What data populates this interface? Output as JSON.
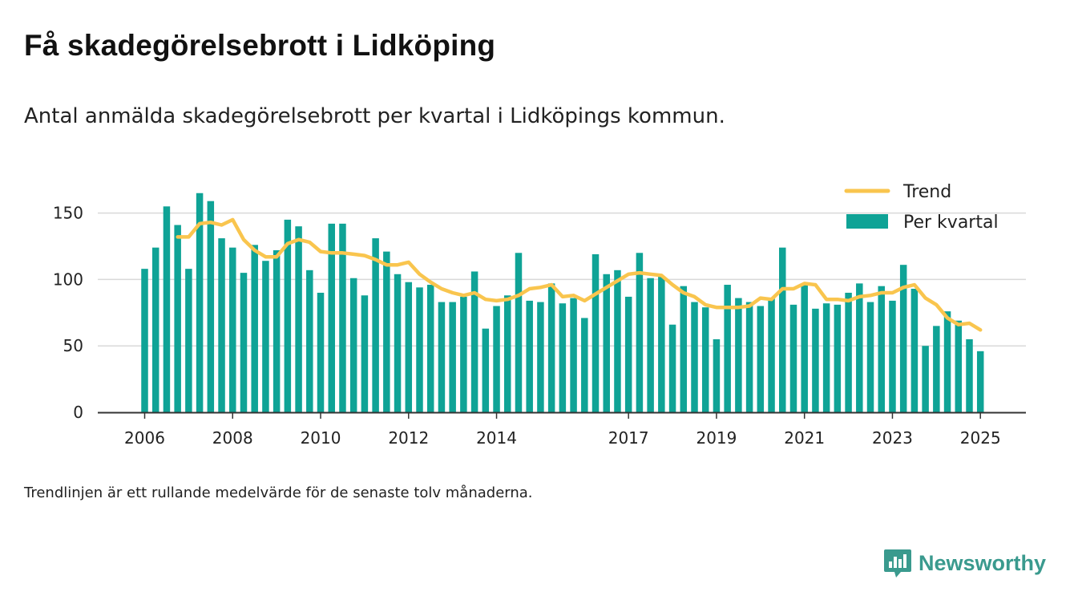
{
  "header": {
    "title": "Få skadegörelsebrott i Lidköping",
    "subtitle": "Antal anmälda skadegörelsebrott per kvartal i Lidköpings kommun."
  },
  "footnote": "Trendlinjen är ett rullande medelvärde för de senaste tolv månaderna.",
  "brand": {
    "name": "Newsworthy",
    "icon": "newsworthy-chart-bubble-icon",
    "color": "#3a9a8e"
  },
  "colors": {
    "bars": "#0fa396",
    "trend": "#f9c54e",
    "grid": "#d9d9d9",
    "axis": "#333333"
  },
  "legend": {
    "placement": "top-right",
    "trend_label": "Trend",
    "bars_label": "Per kvartal"
  },
  "chart_data": {
    "type": "bar",
    "start_year": 2006,
    "x_ticks": [
      "2006",
      "2008",
      "2010",
      "2012",
      "2014",
      "2017",
      "2019",
      "2021",
      "2023",
      "2025"
    ],
    "y_ticks": [
      0,
      50,
      100,
      150
    ],
    "ylim": [
      0,
      165
    ],
    "grid": true,
    "series": [
      {
        "name": "Per kvartal",
        "type": "bar",
        "values": [
          108,
          124,
          155,
          141,
          108,
          165,
          159,
          131,
          124,
          105,
          126,
          114,
          122,
          145,
          140,
          107,
          90,
          142,
          142,
          101,
          88,
          131,
          121,
          104,
          98,
          94,
          96,
          83,
          83,
          87,
          106,
          63,
          80,
          88,
          120,
          84,
          83,
          97,
          82,
          86,
          71,
          119,
          104,
          107,
          87,
          120,
          101,
          102,
          66,
          95,
          83,
          79,
          55,
          96,
          86,
          83,
          80,
          86,
          124,
          81,
          97,
          78,
          82,
          81,
          90,
          97,
          83,
          95,
          84,
          111,
          93,
          50,
          65,
          76,
          69,
          55,
          46
        ]
      },
      {
        "name": "Trend",
        "type": "line",
        "values": [
          null,
          null,
          null,
          132,
          132,
          142,
          143,
          141,
          145,
          130,
          122,
          117,
          117,
          127,
          130,
          128,
          121,
          120,
          120,
          119,
          118,
          115,
          111,
          111,
          113,
          104,
          98,
          93,
          90,
          88,
          90,
          85,
          84,
          85,
          88,
          93,
          94,
          96,
          87,
          88,
          84,
          89,
          94,
          99,
          104,
          105,
          104,
          103,
          96,
          90,
          87,
          81,
          79,
          79,
          79,
          80,
          86,
          85,
          93,
          93,
          97,
          96,
          85,
          85,
          84,
          87,
          88,
          90,
          90,
          94,
          96,
          86,
          81,
          71,
          66,
          67,
          62
        ]
      }
    ]
  }
}
